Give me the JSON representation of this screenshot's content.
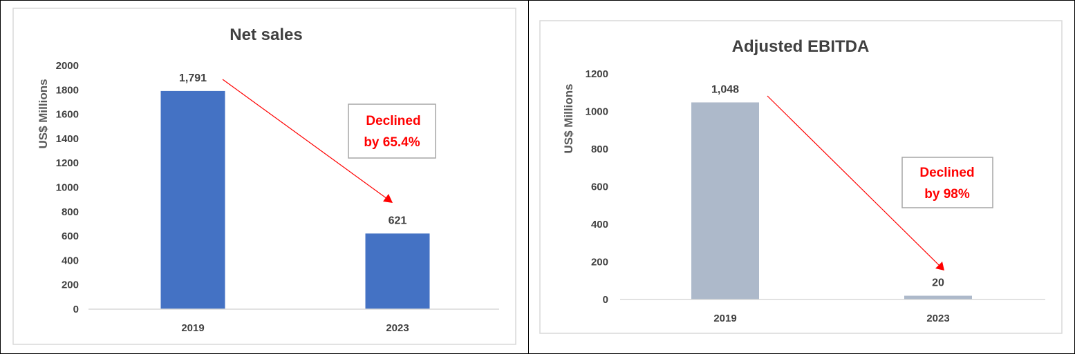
{
  "chart_data": [
    {
      "type": "bar",
      "title": "Net sales",
      "ylabel": "US$ Millions",
      "xlabel": "",
      "categories": [
        "2019",
        "2023"
      ],
      "values": [
        1791,
        621
      ],
      "data_labels": [
        "1,791",
        "621"
      ],
      "ylim": [
        0,
        2000
      ],
      "yticks": [
        0,
        200,
        400,
        600,
        800,
        1000,
        1200,
        1400,
        1600,
        1800,
        2000
      ],
      "bar_color": "#4472C4",
      "grid": false,
      "legend": "none",
      "annotation": {
        "lines": [
          "Declined",
          "by 65.4%"
        ],
        "color": "#FF0000"
      }
    },
    {
      "type": "bar",
      "title": "Adjusted EBITDA",
      "ylabel": "US$ Millions",
      "xlabel": "",
      "categories": [
        "2019",
        "2023"
      ],
      "values": [
        1048,
        20
      ],
      "data_labels": [
        "1,048",
        "20"
      ],
      "ylim": [
        0,
        1200
      ],
      "yticks": [
        0,
        200,
        400,
        600,
        800,
        1000,
        1200
      ],
      "bar_color": "#ADB9CA",
      "grid": false,
      "legend": "none",
      "annotation": {
        "lines": [
          "Declined",
          "by 98%"
        ],
        "color": "#FF0000"
      }
    }
  ]
}
